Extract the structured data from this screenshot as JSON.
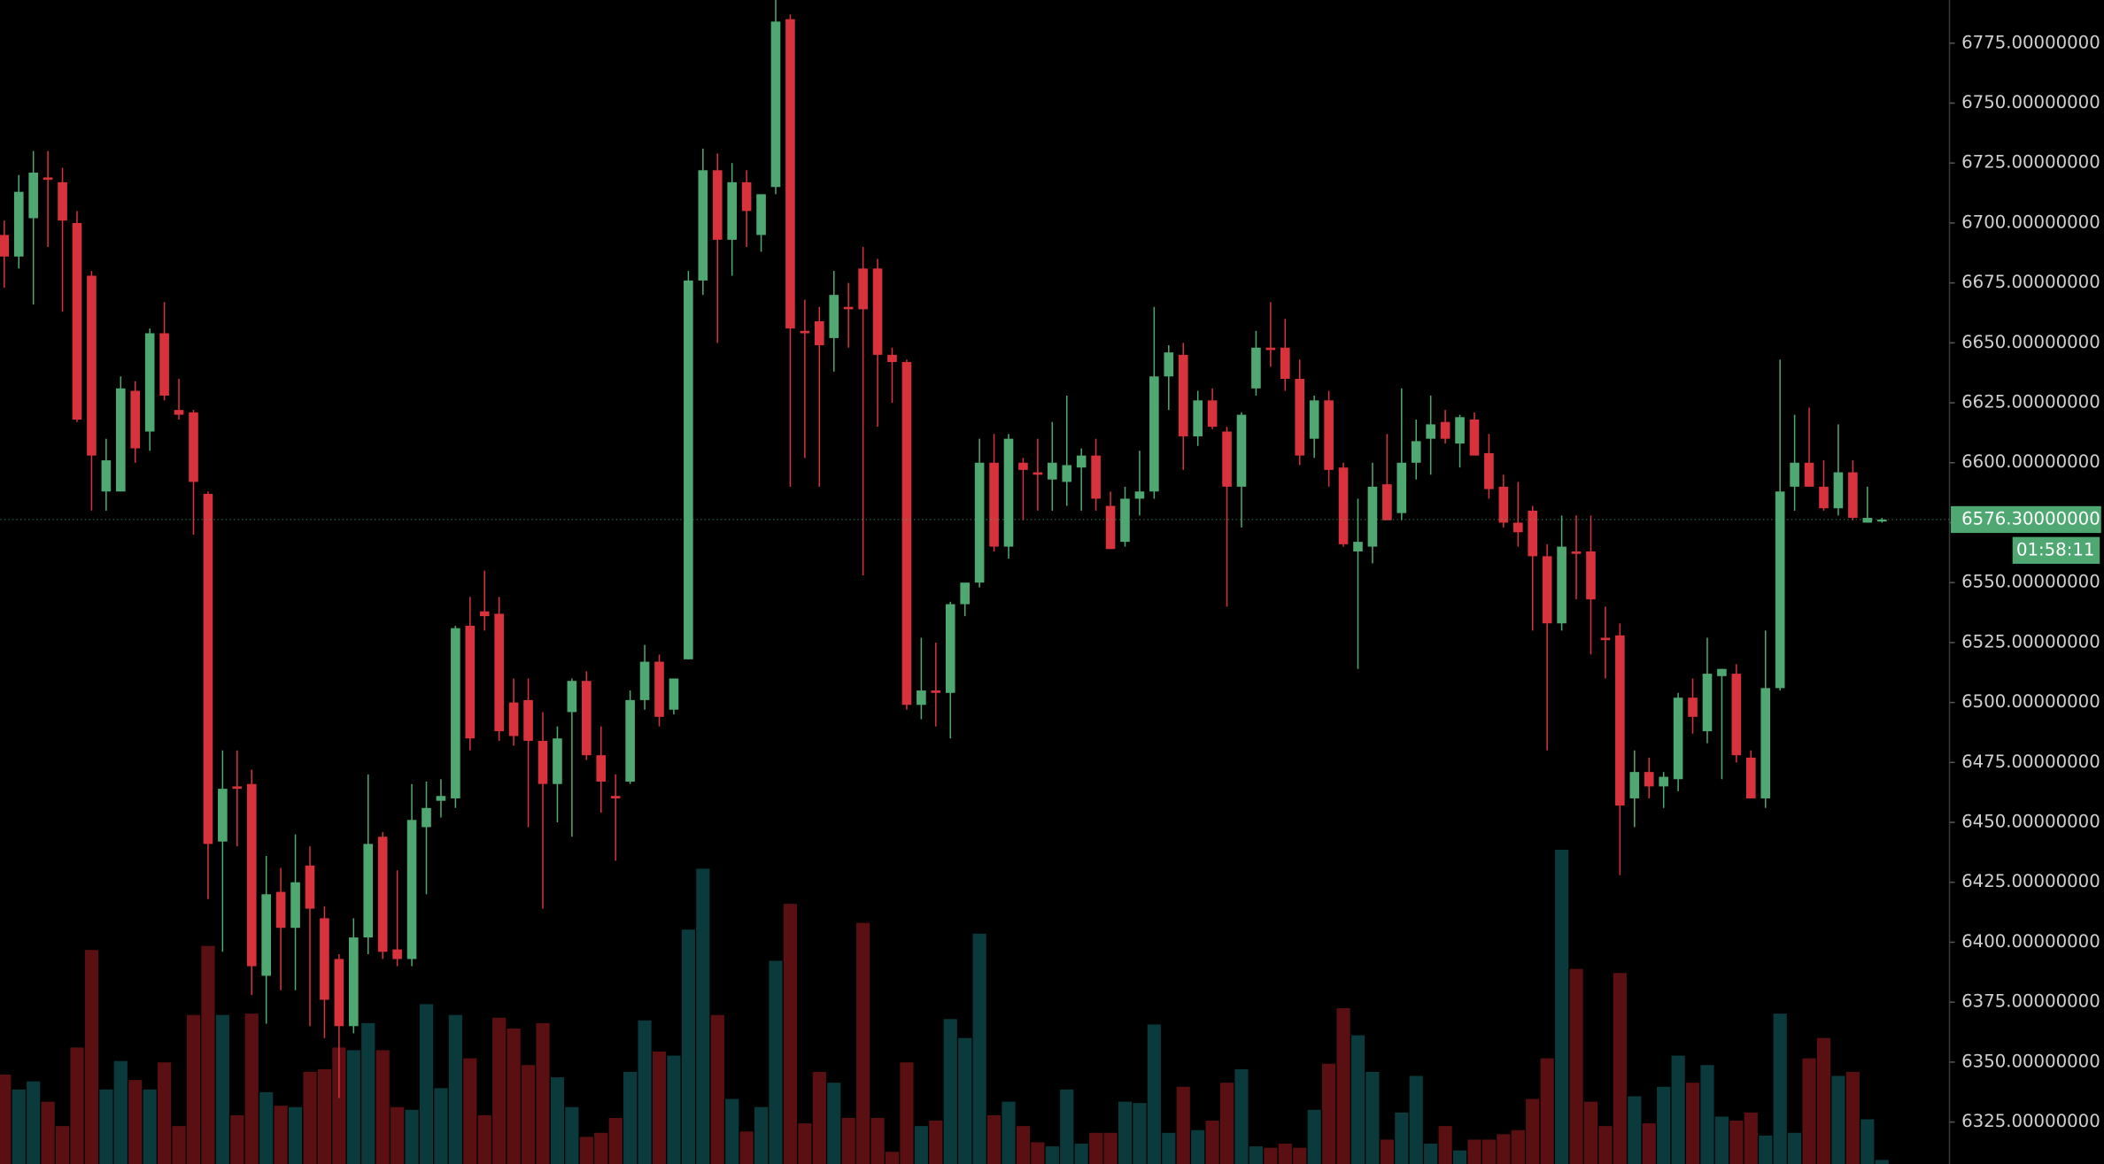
{
  "chart_data": {
    "type": "candlestick",
    "ylim": [
      6307.5,
      6793
    ],
    "yticks": [
      {
        "value": 6325,
        "label": "6325.00000000"
      },
      {
        "value": 6350,
        "label": "6350.00000000"
      },
      {
        "value": 6375,
        "label": "6375.00000000"
      },
      {
        "value": 6400,
        "label": "6400.00000000"
      },
      {
        "value": 6425,
        "label": "6425.00000000"
      },
      {
        "value": 6450,
        "label": "6450.00000000"
      },
      {
        "value": 6475,
        "label": "6475.00000000"
      },
      {
        "value": 6500,
        "label": "6500.00000000"
      },
      {
        "value": 6525,
        "label": "6525.00000000"
      },
      {
        "value": 6550,
        "label": "6550.00000000"
      },
      {
        "value": 6575,
        "label": "6575.00000000"
      },
      {
        "value": 6600,
        "label": "6600.00000000"
      },
      {
        "value": 6625,
        "label": "6625.00000000"
      },
      {
        "value": 6650,
        "label": "6650.00000000"
      },
      {
        "value": 6675,
        "label": "6675.00000000"
      },
      {
        "value": 6700,
        "label": "6700.00000000"
      },
      {
        "value": 6725,
        "label": "6725.00000000"
      },
      {
        "value": 6750,
        "label": "6750.00000000"
      },
      {
        "value": 6775,
        "label": "6775.00000000"
      }
    ],
    "last_price": {
      "value": 6576.3,
      "label": "6576.30000000"
    },
    "countdown": "01:58:11",
    "up_color": "#4fa872",
    "down_color": "#d8323c",
    "volume_up_color": "#0b3a3c",
    "volume_down_color": "#5a1012",
    "open": [
      6695,
      6686,
      6702,
      6719,
      6717,
      6700,
      6678,
      6588,
      6588,
      6630,
      6613,
      6654,
      6622,
      6621,
      6587,
      6442,
      6465,
      6466,
      6386,
      6421,
      6406,
      6432,
      6410,
      6393,
      6365,
      6402,
      6444,
      6397,
      6393,
      6448,
      6459,
      6460,
      6532,
      6538,
      6537,
      6500,
      6501,
      6484,
      6466,
      6496,
      6509,
      6478,
      6461,
      6467,
      6501,
      6517,
      6497,
      6518,
      6676,
      6722,
      6693,
      6717,
      6695,
      6715,
      6785,
      6655,
      6659,
      6652,
      6665,
      6681,
      6681,
      6645,
      6642,
      6499,
      6505,
      6504,
      6541,
      6550,
      6600,
      6565,
      6600,
      6596,
      6593,
      6592,
      6598,
      6603,
      6582,
      6567,
      6585,
      6588,
      6636,
      6645,
      6611,
      6626,
      6613,
      6590,
      6631,
      6648,
      6648,
      6635,
      6610,
      6626,
      6598,
      6563,
      6565,
      6591,
      6579,
      6600,
      6610,
      6617,
      6608,
      6618,
      6604,
      6590,
      6575,
      6580,
      6561,
      6533,
      6563,
      6563,
      6527,
      6528,
      6460,
      6471,
      6465,
      6468,
      6502,
      6488,
      6511,
      6512,
      6477,
      6460,
      6506,
      6590,
      6600,
      6590,
      6581,
      6596,
      6575,
      6576.3
    ],
    "high": [
      6701,
      6720,
      6730,
      6730,
      6723,
      6705,
      6680,
      6610,
      6636,
      6634,
      6656,
      6667,
      6635,
      6622,
      6588,
      6480,
      6480,
      6472,
      6436,
      6431,
      6445,
      6440,
      6415,
      6395,
      6410,
      6470,
      6446,
      6430,
      6466,
      6467,
      6468,
      6532,
      6544,
      6555,
      6544,
      6510,
      6510,
      6496,
      6490,
      6510,
      6513,
      6490,
      6470,
      6505,
      6524,
      6520,
      6510,
      6680,
      6731,
      6729,
      6725,
      6722,
      6710,
      6793,
      6787,
      6668,
      6665,
      6680,
      6675,
      6690,
      6685,
      6648,
      6643,
      6527,
      6525,
      6542,
      6549,
      6610,
      6612,
      6612,
      6602,
      6610,
      6617,
      6628,
      6606,
      6610,
      6588,
      6590,
      6605,
      6665,
      6649,
      6650,
      6630,
      6631,
      6615,
      6621,
      6655,
      6667,
      6660,
      6643,
      6628,
      6630,
      6600,
      6585,
      6600,
      6612,
      6631,
      6618,
      6628,
      6622,
      6620,
      6621,
      6612,
      6595,
      6592,
      6582,
      6566,
      6578,
      6578,
      6578,
      6540,
      6533,
      6480,
      6477,
      6471,
      6504,
      6510,
      6527,
      6514,
      6516,
      6480,
      6530,
      6643,
      6620,
      6623,
      6601,
      6616,
      6601,
      6590,
      6577
    ],
    "low": [
      6673,
      6681,
      6666,
      6690,
      6663,
      6617,
      6580,
      6580,
      6588,
      6600,
      6605,
      6626,
      6618,
      6570,
      6418,
      6396,
      6440,
      6378,
      6366,
      6380,
      6380,
      6365,
      6360,
      6335,
      6362,
      6395,
      6393,
      6390,
      6390,
      6420,
      6452,
      6456,
      6480,
      6530,
      6484,
      6482,
      6448,
      6414,
      6450,
      6444,
      6476,
      6454,
      6434,
      6466,
      6497,
      6490,
      6495,
      6518,
      6670,
      6650,
      6678,
      6690,
      6688,
      6712,
      6590,
      6602,
      6590,
      6638,
      6648,
      6553,
      6615,
      6625,
      6497,
      6493,
      6490,
      6485,
      6536,
      6548,
      6563,
      6560,
      6576,
      6580,
      6580,
      6582,
      6580,
      6580,
      6564,
      6565,
      6578,
      6585,
      6622,
      6597,
      6607,
      6614,
      6540,
      6573,
      6628,
      6640,
      6630,
      6599,
      6602,
      6590,
      6565,
      6514,
      6558,
      6578,
      6576,
      6593,
      6595,
      6608,
      6598,
      6603,
      6585,
      6573,
      6565,
      6530,
      6480,
      6530,
      6543,
      6520,
      6510,
      6428,
      6448,
      6460,
      6456,
      6463,
      6487,
      6483,
      6468,
      6475,
      6460,
      6456,
      6505,
      6580,
      6590,
      6580,
      6578,
      6576,
      6575,
      6575
    ],
    "close": [
      6686,
      6713,
      6721,
      6718,
      6701,
      6618,
      6603,
      6601,
      6631,
      6606,
      6654,
      6628,
      6620,
      6592,
      6441,
      6464,
      6464,
      6390,
      6420,
      6406,
      6425,
      6414,
      6376,
      6365,
      6402,
      6441,
      6396,
      6393,
      6451,
      6456,
      6461,
      6531,
      6485,
      6536,
      6488,
      6486,
      6484,
      6466,
      6485,
      6509,
      6478,
      6467,
      6460,
      6501,
      6517,
      6494,
      6510,
      6676,
      6722,
      6693,
      6717,
      6705,
      6712,
      6784,
      6656,
      6654,
      6649,
      6670,
      6664,
      6664,
      6645,
      6642,
      6499,
      6505,
      6504,
      6541,
      6550,
      6600,
      6565,
      6610,
      6597,
      6595,
      6600,
      6599,
      6603,
      6585,
      6564,
      6585,
      6588,
      6636,
      6646,
      6611,
      6626,
      6615,
      6590,
      6620,
      6648,
      6647,
      6635,
      6603,
      6626,
      6597,
      6566,
      6567,
      6590,
      6576,
      6600,
      6609,
      6616,
      6610,
      6619,
      6603,
      6589,
      6575,
      6571,
      6561,
      6533,
      6565,
      6562,
      6543,
      6526,
      6457,
      6471,
      6465,
      6469,
      6502,
      6494,
      6512,
      6514,
      6478,
      6460,
      6506,
      6588,
      6600,
      6590,
      6581,
      6596,
      6577,
      6577,
      6576.3
    ],
    "volume": [
      66,
      55,
      61,
      46,
      28,
      86,
      158,
      55,
      76,
      62,
      55,
      75,
      28,
      110,
      161,
      110,
      36,
      111,
      53,
      43,
      42,
      68,
      70,
      86,
      84,
      104,
      84,
      42,
      40,
      118,
      56,
      110,
      78,
      36,
      108,
      100,
      73,
      104,
      64,
      42,
      20,
      23,
      34,
      68,
      106,
      83,
      80,
      173,
      218,
      110,
      48,
      24,
      42,
      150,
      192,
      30,
      68,
      60,
      34,
      178,
      34,
      9,
      75,
      28,
      32,
      107,
      93,
      170,
      36,
      46,
      28,
      16,
      13,
      55,
      15,
      23,
      23,
      46,
      45,
      103,
      23,
      57,
      25,
      32,
      60,
      70,
      13,
      12,
      15,
      12,
      40,
      74,
      115,
      95,
      68,
      18,
      38,
      65,
      15,
      28,
      10,
      18,
      18,
      22,
      25,
      48,
      78,
      232,
      144,
      46,
      28,
      141,
      50,
      30,
      57,
      80,
      60,
      73,
      35,
      32,
      38,
      21,
      111,
      23,
      78,
      93,
      65,
      68,
      33,
      3
    ]
  }
}
